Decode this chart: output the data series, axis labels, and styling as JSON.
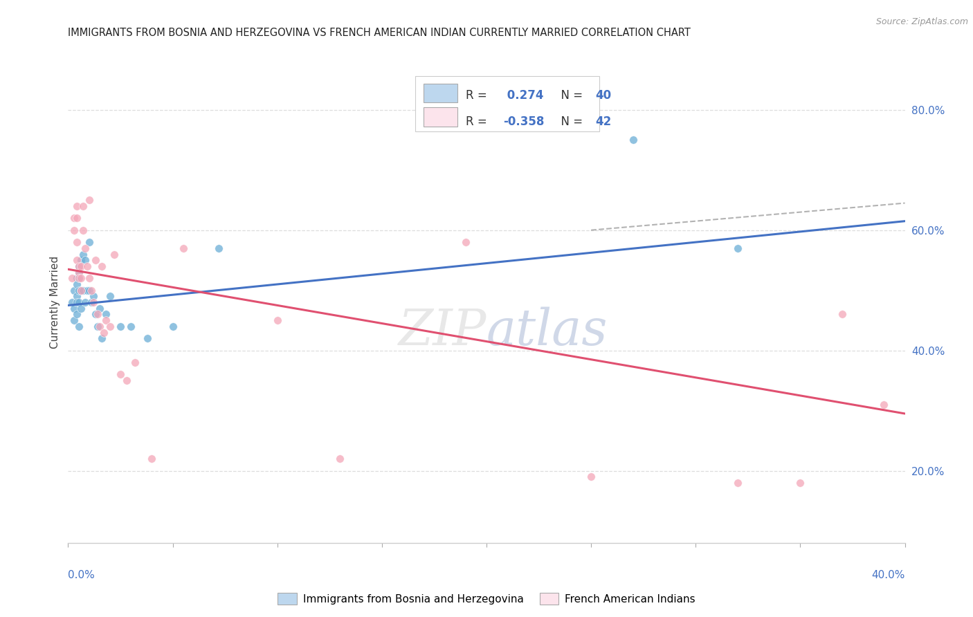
{
  "title": "IMMIGRANTS FROM BOSNIA AND HERZEGOVINA VS FRENCH AMERICAN INDIAN CURRENTLY MARRIED CORRELATION CHART",
  "source": "Source: ZipAtlas.com",
  "ylabel": "Currently Married",
  "ylabel_right_vals": [
    0.2,
    0.4,
    0.6,
    0.8
  ],
  "blue_color": "#6baed6",
  "blue_fill": "#bdd7ee",
  "pink_color": "#f4a6b8",
  "pink_fill": "#fce4ec",
  "line_blue": "#4472c4",
  "line_pink": "#e05070",
  "line_gray_dash": "#aaaaaa",
  "background": "#ffffff",
  "grid_color": "#dddddd",
  "x_range": [
    0.0,
    0.4
  ],
  "y_range": [
    0.08,
    0.88
  ],
  "blue_R": 0.274,
  "blue_N": 40,
  "pink_R": -0.358,
  "pink_N": 42,
  "blue_scatter_x": [
    0.002,
    0.003,
    0.003,
    0.003,
    0.004,
    0.004,
    0.004,
    0.004,
    0.004,
    0.005,
    0.005,
    0.005,
    0.005,
    0.005,
    0.005,
    0.006,
    0.006,
    0.006,
    0.007,
    0.007,
    0.008,
    0.008,
    0.009,
    0.01,
    0.01,
    0.011,
    0.012,
    0.013,
    0.014,
    0.015,
    0.016,
    0.018,
    0.02,
    0.025,
    0.03,
    0.038,
    0.05,
    0.072,
    0.27,
    0.32
  ],
  "blue_scatter_y": [
    0.48,
    0.5,
    0.47,
    0.45,
    0.52,
    0.51,
    0.49,
    0.48,
    0.46,
    0.54,
    0.53,
    0.52,
    0.5,
    0.48,
    0.44,
    0.55,
    0.5,
    0.47,
    0.56,
    0.5,
    0.55,
    0.48,
    0.5,
    0.58,
    0.5,
    0.48,
    0.49,
    0.46,
    0.44,
    0.47,
    0.42,
    0.46,
    0.49,
    0.44,
    0.44,
    0.42,
    0.44,
    0.57,
    0.75,
    0.57
  ],
  "pink_scatter_x": [
    0.002,
    0.003,
    0.003,
    0.004,
    0.004,
    0.004,
    0.004,
    0.005,
    0.005,
    0.005,
    0.006,
    0.006,
    0.006,
    0.007,
    0.007,
    0.008,
    0.009,
    0.01,
    0.01,
    0.011,
    0.012,
    0.013,
    0.014,
    0.015,
    0.016,
    0.017,
    0.018,
    0.02,
    0.022,
    0.025,
    0.028,
    0.032,
    0.04,
    0.055,
    0.1,
    0.13,
    0.19,
    0.25,
    0.32,
    0.35,
    0.37,
    0.39
  ],
  "pink_scatter_y": [
    0.52,
    0.62,
    0.6,
    0.64,
    0.62,
    0.58,
    0.55,
    0.54,
    0.53,
    0.52,
    0.54,
    0.52,
    0.5,
    0.64,
    0.6,
    0.57,
    0.54,
    0.65,
    0.52,
    0.5,
    0.48,
    0.55,
    0.46,
    0.44,
    0.54,
    0.43,
    0.45,
    0.44,
    0.56,
    0.36,
    0.35,
    0.38,
    0.22,
    0.57,
    0.45,
    0.22,
    0.58,
    0.19,
    0.18,
    0.18,
    0.46,
    0.31
  ],
  "blue_line_x0": 0.0,
  "blue_line_y0": 0.475,
  "blue_line_x1": 0.4,
  "blue_line_y1": 0.615,
  "pink_line_x0": 0.0,
  "pink_line_y0": 0.535,
  "pink_line_x1": 0.4,
  "pink_line_y1": 0.295,
  "gray_line_x0": 0.25,
  "gray_line_y0": 0.6,
  "gray_line_x1": 0.4,
  "gray_line_y1": 0.645
}
